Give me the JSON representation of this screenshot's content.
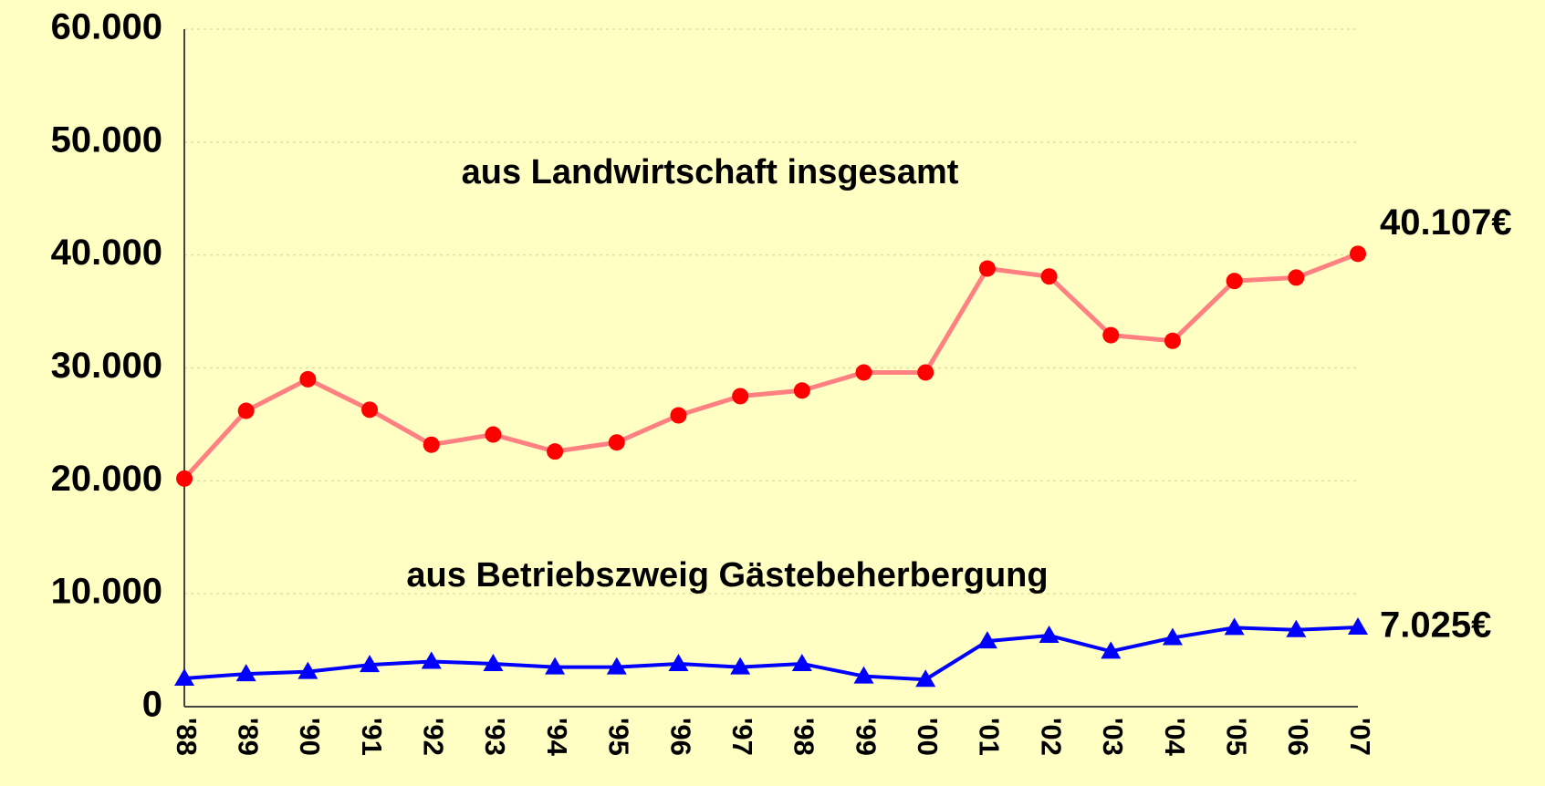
{
  "chart_data": {
    "type": "line",
    "categories": [
      "'88",
      "'89",
      "'90",
      "'91",
      "'92",
      "'93",
      "'94",
      "'95",
      "'96",
      "'97",
      "'98",
      "'99",
      "'00",
      "'01",
      "'02",
      "'03",
      "'04",
      "'05",
      "'06",
      "'07"
    ],
    "series": [
      {
        "name": "aus Landwirtschaft insgesamt",
        "color": "#ff0000",
        "line_color": "#ff8080",
        "marker": "circle",
        "values": [
          20200,
          26200,
          29000,
          26300,
          23200,
          24100,
          22600,
          23400,
          25800,
          27500,
          28000,
          29600,
          29600,
          38800,
          38100,
          32900,
          32400,
          37700,
          38000,
          40107
        ],
        "value_labels": [
          null,
          null,
          null,
          null,
          null,
          null,
          null,
          null,
          null,
          null,
          null,
          null,
          null,
          null,
          null,
          null,
          null,
          null,
          null,
          "40.107€"
        ]
      },
      {
        "name": "aus Betriebszweig Gästebeherbergung",
        "color": "#0000ff",
        "line_color": "#0000ff",
        "marker": "triangle",
        "values": [
          2500,
          2900,
          3100,
          3700,
          4000,
          3800,
          3500,
          3500,
          3800,
          3500,
          3800,
          2700,
          2400,
          5800,
          6300,
          4900,
          6100,
          7000,
          6800,
          7025
        ],
        "value_labels": [
          null,
          null,
          null,
          null,
          null,
          null,
          null,
          null,
          null,
          null,
          null,
          null,
          null,
          null,
          null,
          null,
          null,
          null,
          null,
          "7.025€"
        ]
      }
    ],
    "ylim": [
      0,
      60000
    ],
    "yticks": [
      {
        "value": 0,
        "label": "0"
      },
      {
        "value": 10000,
        "label": "10.000"
      },
      {
        "value": 20000,
        "label": "20.000"
      },
      {
        "value": 30000,
        "label": "30.000"
      },
      {
        "value": 40000,
        "label": "40.000"
      },
      {
        "value": 50000,
        "label": "50.000"
      },
      {
        "value": 60000,
        "label": "60.000"
      }
    ],
    "grid": true
  }
}
